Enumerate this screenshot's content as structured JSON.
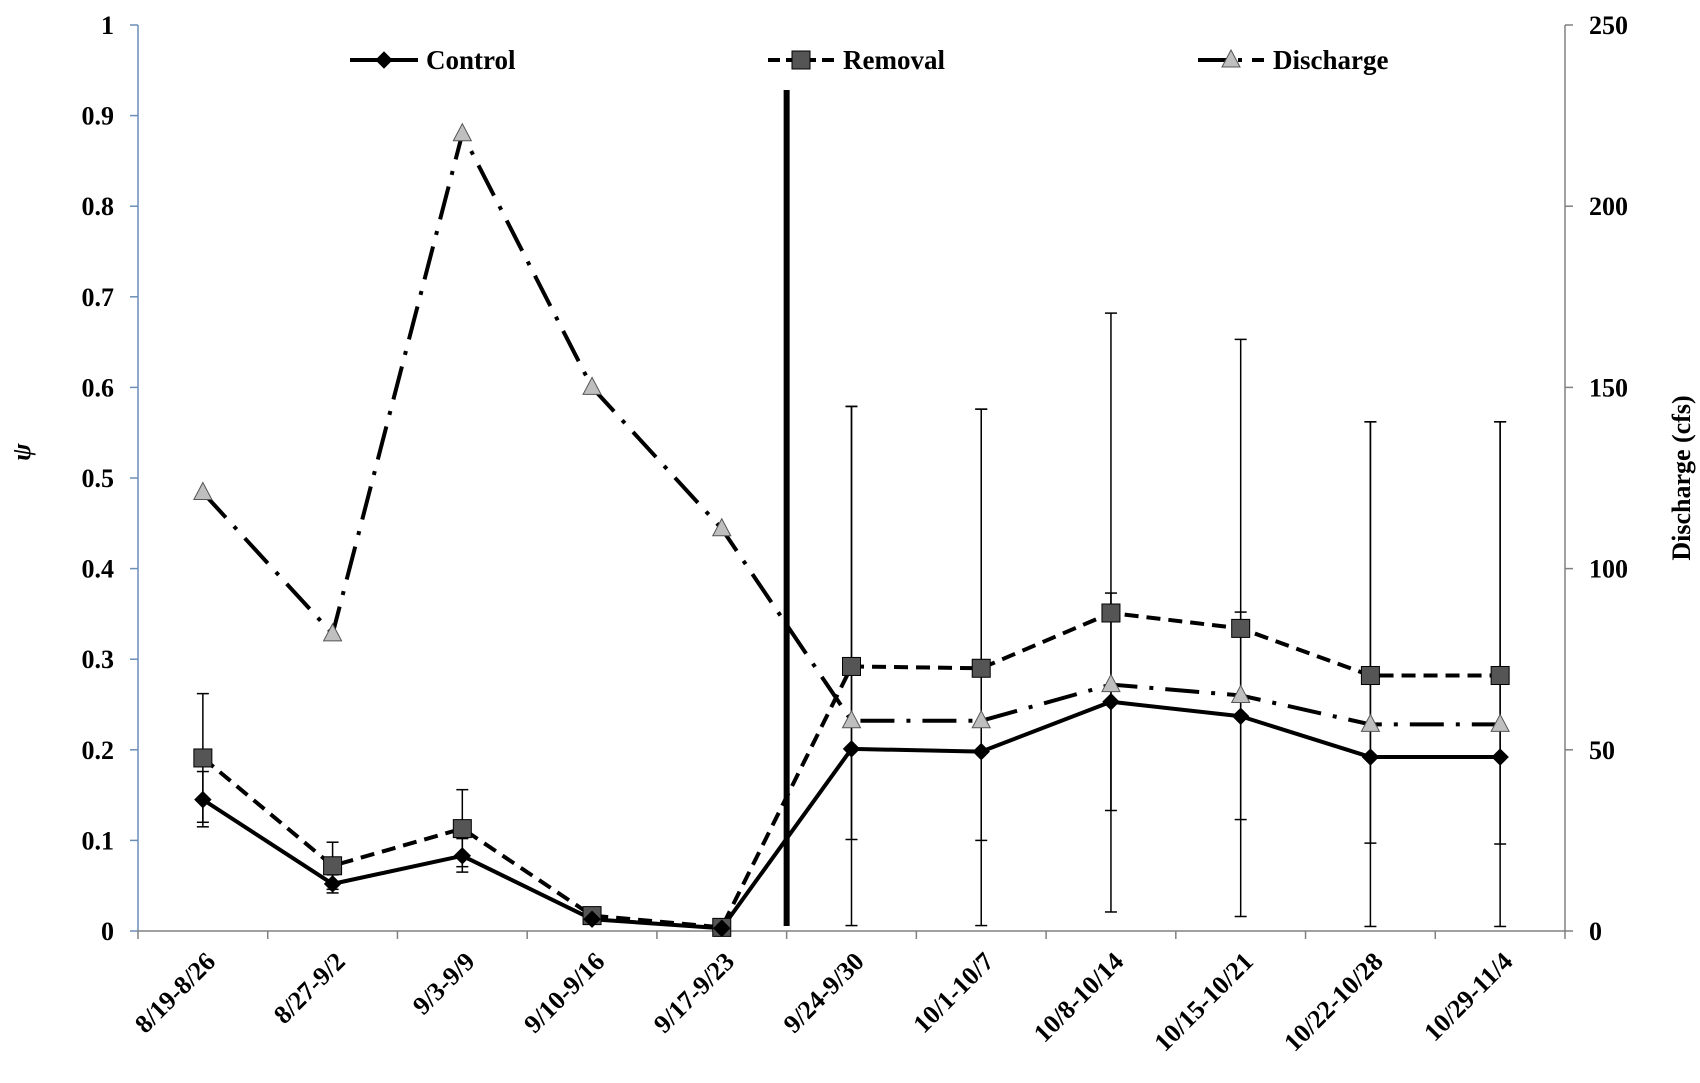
{
  "chart_data": {
    "type": "line",
    "categories": [
      "8/19-8/26",
      "8/27-9/2",
      "9/3-9/9",
      "9/10-9/16",
      "9/17-9/23",
      "9/24-9/30",
      "10/1-10/7",
      "10/8-10/14",
      "10/15-10/21",
      "10/22-10/28",
      "10/29-11/4"
    ],
    "ylabel": "ψ",
    "y2label": "Discharge (cfs)",
    "ylim": [
      0,
      1
    ],
    "y2lim": [
      0,
      250
    ],
    "yticks": [
      "0",
      "0.1",
      "0.2",
      "0.3",
      "0.4",
      "0.5",
      "0.6",
      "0.7",
      "0.8",
      "0.9",
      "1"
    ],
    "y2ticks": [
      "0",
      "50",
      "100",
      "150",
      "200",
      "250"
    ],
    "grid": false,
    "legend_position": "top",
    "treatment_marker_between": [
      "9/17-9/23",
      "9/24-9/30"
    ],
    "series": [
      {
        "name": "Control",
        "axis": "left",
        "style": "solid",
        "marker": "diamond",
        "color": "#000000",
        "values": [
          0.145,
          0.052,
          0.083,
          0.013,
          0.003,
          0.201,
          0.198,
          0.253,
          0.237,
          0.192,
          0.192
        ],
        "error_low": [
          0.115,
          0.042,
          0.065,
          0.01,
          0.002,
          0.006,
          0.006,
          0.021,
          0.016,
          0.005,
          0.005
        ],
        "error_high": [
          0.176,
          0.062,
          0.102,
          0.016,
          0.004,
          0.579,
          0.576,
          0.373,
          0.352,
          0.562,
          0.562
        ]
      },
      {
        "name": "Removal",
        "axis": "left",
        "style": "dashed",
        "marker": "square",
        "color": "#555555",
        "values": [
          0.191,
          0.072,
          0.113,
          0.017,
          0.004,
          0.292,
          0.29,
          0.351,
          0.334,
          0.282,
          0.282
        ],
        "error_low": [
          0.12,
          0.046,
          0.071,
          0.014,
          0.003,
          0.101,
          0.1,
          0.133,
          0.123,
          0.097,
          0.096
        ],
        "error_high": [
          0.262,
          0.098,
          0.156,
          0.02,
          0.005,
          0.579,
          0.576,
          0.682,
          0.653,
          0.562,
          0.562
        ]
      },
      {
        "name": "Discharge",
        "axis": "right",
        "style": "dashdot",
        "marker": "triangle",
        "color": "#bfbfbf",
        "values": [
          121,
          82,
          220,
          150,
          111,
          58,
          58,
          68,
          65,
          57,
          57
        ]
      }
    ]
  }
}
